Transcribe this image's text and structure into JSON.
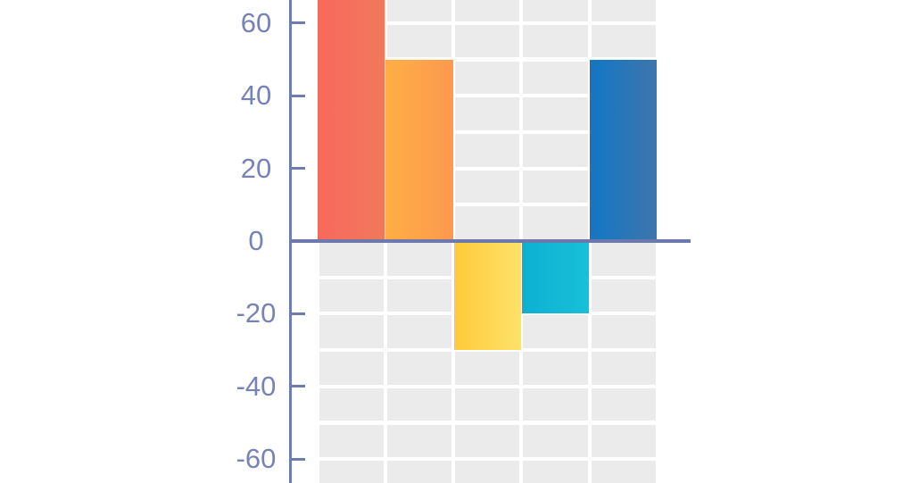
{
  "page": {
    "background_color": "#ffffff",
    "description": "Cropped view of a vertical bar chart with positive and negative bars"
  },
  "chart_data": {
    "type": "bar",
    "title": "",
    "subtitle": "",
    "xlabel": "",
    "ylabel": "",
    "categories": [
      "",
      "",
      "",
      "",
      ""
    ],
    "values": [
      null,
      50,
      -30,
      -20,
      50
    ],
    "values_note": "First (coral) bar is clipped by the top edge of the visible crop; its visible portion exceeds +66. No category labels, chart title, or legend are visible in the crop.",
    "bars": [
      {
        "index": 1,
        "value": null,
        "clipped_above_view": true,
        "visible_value_at_crop": 66,
        "color_left": "#f8695c",
        "color_right": "#f0795b"
      },
      {
        "index": 2,
        "value": 50,
        "clipped_above_view": false,
        "color_left": "#feae45",
        "color_right": "#fc994f"
      },
      {
        "index": 3,
        "value": -30,
        "clipped_above_view": false,
        "color_left": "#ffca3b",
        "color_right": "#fde269"
      },
      {
        "index": 4,
        "value": -20,
        "clipped_above_view": false,
        "color_left": "#0cb0d2",
        "color_right": "#19c0d8"
      },
      {
        "index": 5,
        "value": 50,
        "clipped_above_view": false,
        "color_left": "#1277c6",
        "color_right": "#3e76ab"
      }
    ],
    "y_axis": {
      "tick_labels": [
        "60",
        "40",
        "20",
        "0",
        "-20",
        "-40",
        "-60"
      ],
      "tick_values": [
        60,
        40,
        20,
        0,
        -20,
        -40,
        -60
      ],
      "minor_gridline_step": 10,
      "visible_range": [
        -66.6,
        66.3
      ],
      "ticks_point_inward": true
    },
    "x_axis": {
      "labels_visible": false
    },
    "legend": {
      "visible": false
    },
    "grid": {
      "visible": true,
      "style": "striped cells: 5 columns aligned with bars, rows every 10 units, white gaps between cells",
      "cell_color": "#ebebeb"
    },
    "colors": {
      "axis": "#6f7cb0",
      "tick_label": "#7783b6",
      "zero_line": "#6d79ac",
      "background": "#ffffff"
    }
  }
}
